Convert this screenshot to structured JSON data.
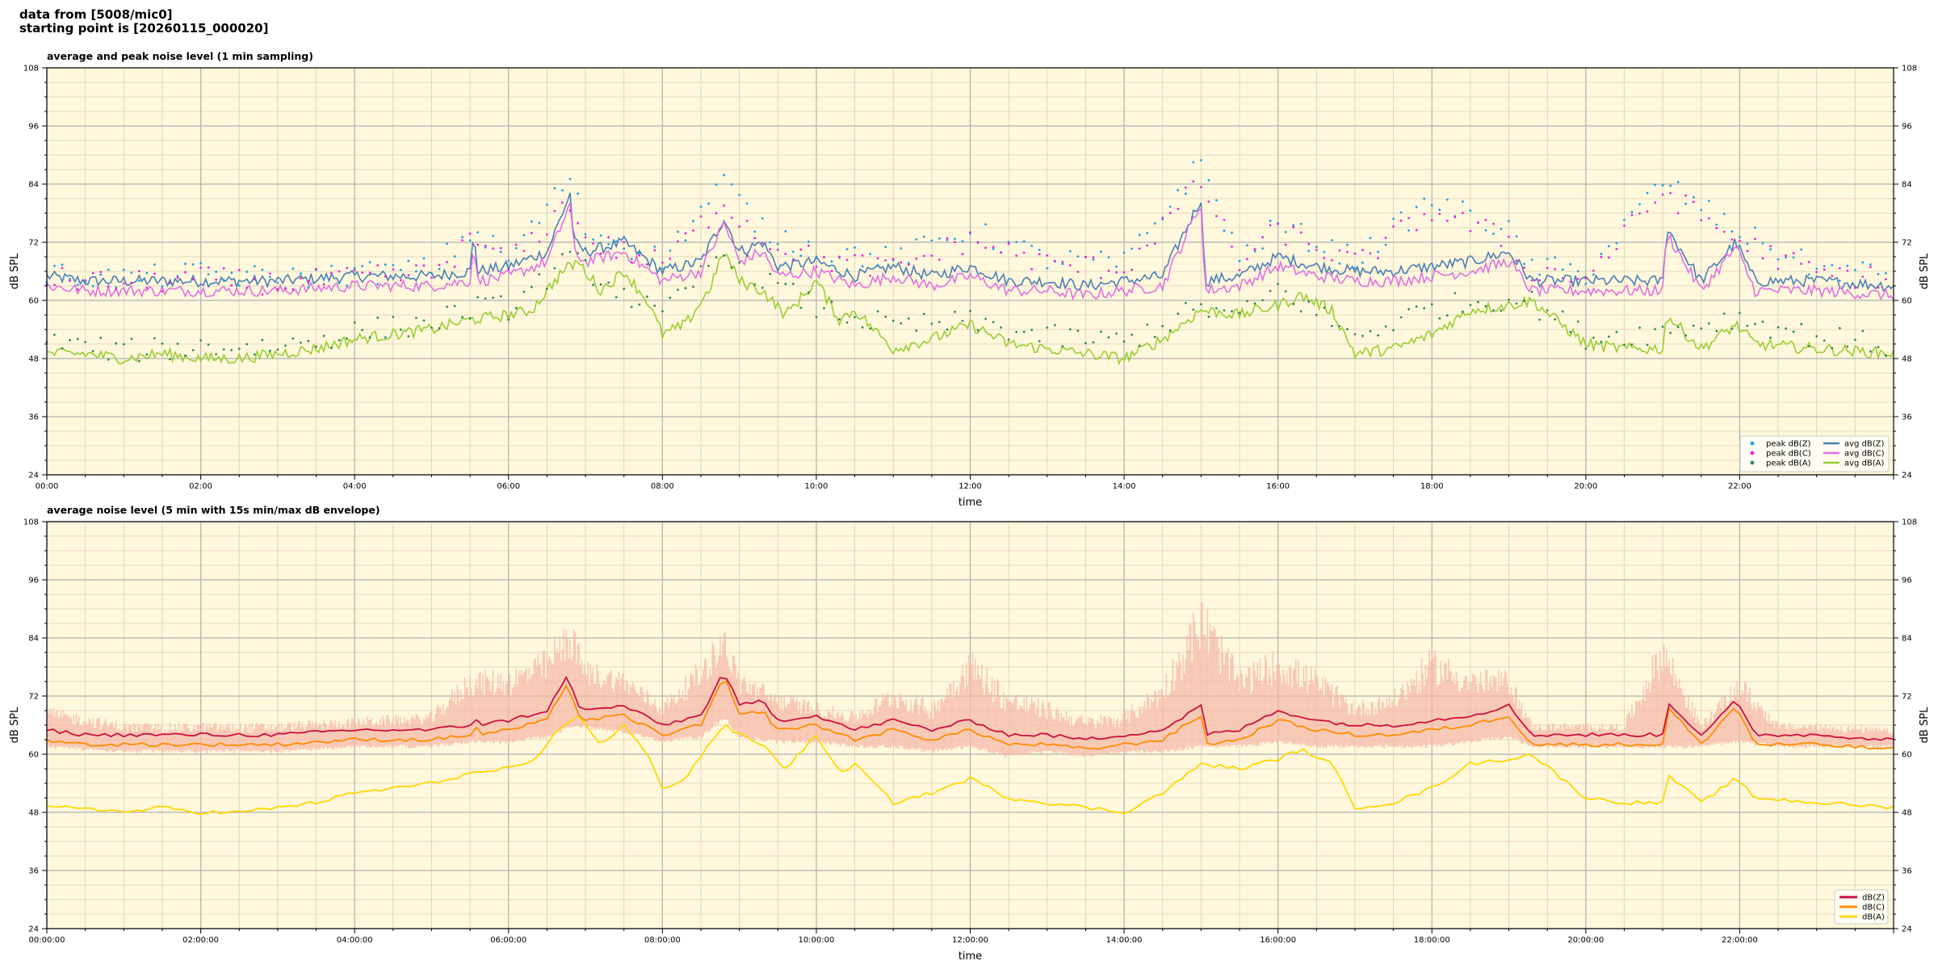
{
  "header": {
    "line1": "data from [5008/mic0]",
    "line2": "starting point is [20260115_000020]"
  },
  "colors": {
    "background": "#fff8dc",
    "peak_z": "#1f9fe0",
    "peak_c": "#ee22dd",
    "peak_a": "#2e8b57",
    "avg_z": "#4a7fb5",
    "avg_c": "#e070e0",
    "avg_a": "#9acd32",
    "z": "#cc1040",
    "c": "#ff8c00",
    "a": "#ffd700",
    "envelope": "#f5b8a8"
  },
  "chart_data": [
    {
      "type": "scatter",
      "title": "average and peak noise level (1 min sampling)",
      "xlabel": "time",
      "ylabel": "dB SPL",
      "ylabel_right": "dB SPL",
      "x_unit": "hours since 00:00",
      "xlim": [
        0,
        24
      ],
      "ylim": [
        24,
        108
      ],
      "yticks": [
        24,
        36,
        48,
        60,
        72,
        84,
        96,
        108
      ],
      "xticks": [
        0,
        2,
        4,
        6,
        8,
        10,
        12,
        14,
        16,
        18,
        20,
        22
      ],
      "xticklabels": [
        "00:00",
        "02:00",
        "04:00",
        "06:00",
        "08:00",
        "10:00",
        "12:00",
        "14:00",
        "16:00",
        "18:00",
        "20:00",
        "22:00"
      ],
      "grid": true,
      "legend_position": "lower right",
      "series": [
        {
          "name": "peak dB(Z)",
          "kind": "points",
          "x": [
            0,
            1,
            2,
            3,
            4,
            5,
            5.55,
            6,
            6.8,
            7,
            8,
            8.8,
            9.3,
            10,
            11,
            12,
            13,
            14,
            15,
            15.5,
            16,
            17,
            18,
            19,
            19.2,
            20,
            21,
            21.95,
            23,
            24
          ],
          "y": [
            65,
            64,
            65,
            64,
            65,
            66,
            74,
            68,
            85,
            74,
            68,
            84,
            74,
            70,
            68,
            74,
            68,
            67,
            88,
            68,
            75,
            68,
            80,
            74,
            67,
            65,
            84,
            74,
            66,
            65
          ]
        },
        {
          "name": "peak dB(C)",
          "kind": "points",
          "x": [
            0,
            1,
            2,
            3,
            4,
            5,
            5.55,
            6,
            6.8,
            7,
            8,
            8.8,
            9.3,
            10,
            11,
            12,
            13,
            14,
            15,
            15.5,
            16,
            17,
            18,
            19,
            19.2,
            20,
            21,
            21.95,
            23,
            24
          ],
          "y": [
            64,
            63,
            64,
            63,
            64,
            65,
            72,
            67,
            80,
            72,
            67,
            80,
            72,
            68,
            66,
            72,
            67,
            66,
            84,
            67,
            74,
            67,
            78,
            72,
            66,
            64,
            82,
            72,
            65,
            64
          ]
        },
        {
          "name": "peak dB(A)",
          "kind": "points",
          "x": [
            0,
            1,
            2,
            3,
            4,
            5,
            5.55,
            6,
            6.8,
            7,
            8,
            8.8,
            9.3,
            10,
            11,
            12,
            13,
            14,
            15,
            15.5,
            16,
            17,
            18,
            19,
            19.2,
            20,
            21,
            21.95,
            23,
            24
          ],
          "y": [
            51,
            49,
            50,
            50,
            53,
            55,
            58,
            58,
            68,
            66,
            56,
            70,
            64,
            58,
            54,
            55,
            52,
            51,
            58,
            56,
            62,
            52,
            58,
            60,
            60,
            52,
            53,
            56,
            52,
            50
          ]
        },
        {
          "name": "avg dB(Z)",
          "kind": "line",
          "x": [
            0,
            0.5,
            1,
            2,
            3,
            4,
            5,
            5.5,
            5.55,
            5.6,
            6,
            6.5,
            6.8,
            6.85,
            7,
            7.5,
            8,
            8.5,
            8.8,
            9,
            9.3,
            9.5,
            10,
            10.5,
            11,
            11.5,
            12,
            12.5,
            13,
            13.5,
            14,
            14.5,
            15,
            15.05,
            15.5,
            16,
            16.5,
            17,
            17.5,
            18,
            18.5,
            19,
            19.3,
            20,
            20.5,
            21,
            21.05,
            21.5,
            21.95,
            22.2,
            23,
            24
          ],
          "y": [
            65,
            64,
            64,
            64,
            64,
            65,
            65,
            66,
            74,
            66,
            67,
            70,
            82,
            72,
            70,
            72,
            66,
            68,
            77,
            70,
            72,
            67,
            68,
            65,
            67,
            65,
            67,
            64,
            64,
            63,
            64,
            65,
            81,
            64,
            65,
            69,
            67,
            66,
            66,
            67,
            68,
            70,
            64,
            64,
            64,
            64,
            75,
            64,
            72,
            64,
            64,
            63
          ]
        },
        {
          "name": "avg dB(C)",
          "kind": "line",
          "x": [
            0,
            0.5,
            1,
            2,
            3,
            4,
            5,
            5.5,
            5.55,
            5.6,
            6,
            6.5,
            6.8,
            6.85,
            7,
            7.5,
            8,
            8.5,
            8.8,
            9,
            9.3,
            9.5,
            10,
            10.5,
            11,
            11.5,
            12,
            12.5,
            13,
            13.5,
            14,
            14.5,
            15,
            15.05,
            15.5,
            16,
            16.5,
            17,
            17.5,
            18,
            18.5,
            19,
            19.3,
            20,
            20.5,
            21,
            21.05,
            21.5,
            21.95,
            22.2,
            23,
            24
          ],
          "y": [
            63,
            62,
            62,
            62,
            62,
            63,
            63,
            64,
            72,
            64,
            65,
            68,
            80,
            70,
            68,
            70,
            64,
            66,
            76,
            68,
            70,
            65,
            66,
            63,
            65,
            63,
            65,
            62,
            62,
            61,
            62,
            63,
            80,
            62,
            63,
            67,
            65,
            64,
            64,
            65,
            66,
            68,
            62,
            62,
            62,
            62,
            74,
            62,
            71,
            62,
            62,
            61
          ]
        },
        {
          "name": "avg dB(A)",
          "kind": "line",
          "x": [
            0,
            0.5,
            1,
            1.5,
            2,
            2.5,
            3,
            3.5,
            4,
            4.5,
            5,
            5.5,
            6,
            6.3,
            6.7,
            6.9,
            7.2,
            7.5,
            7.8,
            8,
            8.3,
            8.6,
            8.8,
            9,
            9.3,
            9.6,
            10,
            10.3,
            10.5,
            11,
            11.5,
            12,
            12.5,
            13,
            13.5,
            14,
            14.5,
            15,
            15.5,
            16,
            16.3,
            16.7,
            17,
            17.5,
            18,
            18.5,
            19,
            19.3,
            20,
            20.5,
            21,
            21.05,
            21.5,
            21.95,
            22.2,
            23,
            24
          ],
          "y": [
            49,
            49,
            48,
            49,
            48,
            48,
            49,
            50,
            52,
            53,
            54,
            56,
            57,
            58,
            66,
            68,
            62,
            66,
            60,
            53,
            55,
            62,
            70,
            64,
            62,
            57,
            64,
            56,
            58,
            50,
            52,
            55,
            51,
            50,
            49,
            48,
            52,
            58,
            57,
            59,
            61,
            58,
            49,
            50,
            53,
            58,
            59,
            60,
            51,
            50,
            50,
            57,
            50,
            55,
            51,
            50,
            49
          ]
        }
      ]
    },
    {
      "type": "line",
      "title": "average noise level (5 min with 15s min/max dB envelope)",
      "xlabel": "time",
      "ylabel": "dB SPL",
      "ylabel_right": "dB SPL",
      "x_unit": "hours since 00:00",
      "xlim": [
        0,
        24
      ],
      "ylim": [
        24,
        108
      ],
      "yticks": [
        24,
        36,
        48,
        60,
        72,
        84,
        96,
        108
      ],
      "xticks": [
        0,
        2,
        4,
        6,
        8,
        10,
        12,
        14,
        16,
        18,
        20,
        22
      ],
      "xticklabels": [
        "00:00:00",
        "02:00:00",
        "04:00:00",
        "06:00:00",
        "08:00:00",
        "10:00:00",
        "12:00:00",
        "14:00:00",
        "16:00:00",
        "18:00:00",
        "20:00:00",
        "22:00:00"
      ],
      "grid": true,
      "legend_position": "lower right",
      "envelope": {
        "x": [
          0,
          1,
          2,
          3,
          4,
          5,
          5.5,
          6,
          6.5,
          6.8,
          7,
          7.5,
          8,
          8.5,
          8.8,
          9,
          9.5,
          10,
          10.5,
          11,
          11.5,
          12,
          12.5,
          13,
          13.5,
          14,
          14.5,
          15,
          15.5,
          16,
          16.5,
          17,
          17.5,
          18,
          18.5,
          19,
          19.3,
          20,
          20.5,
          21,
          21.5,
          22,
          22.5,
          23,
          24
        ],
        "low": [
          62,
          61,
          61,
          61,
          62,
          62,
          63,
          63,
          64,
          66,
          66,
          65,
          63,
          64,
          68,
          64,
          63,
          63,
          62,
          62,
          61,
          62,
          60,
          61,
          60,
          61,
          61,
          62,
          62,
          63,
          62,
          62,
          62,
          62,
          63,
          64,
          62,
          62,
          62,
          62,
          62,
          63,
          62,
          62,
          62
        ],
        "high": [
          69,
          66,
          66,
          66,
          67,
          68,
          76,
          76,
          80,
          86,
          78,
          76,
          70,
          78,
          85,
          76,
          72,
          70,
          68,
          73,
          70,
          80,
          72,
          70,
          67,
          68,
          74,
          90,
          76,
          80,
          76,
          70,
          72,
          80,
          76,
          76,
          66,
          66,
          66,
          83,
          66,
          75,
          66,
          66,
          65
        ]
      },
      "series": [
        {
          "name": "dB(Z)",
          "x": [
            0,
            0.5,
            1,
            2,
            3,
            4,
            5,
            5.5,
            5.55,
            5.6,
            6,
            6.5,
            6.8,
            6.85,
            7,
            7.5,
            8,
            8.5,
            8.8,
            9,
            9.3,
            9.5,
            10,
            10.5,
            11,
            11.5,
            12,
            12.5,
            13,
            13.5,
            14,
            14.5,
            15,
            15.05,
            15.5,
            16,
            16.5,
            17,
            17.5,
            18,
            18.5,
            19,
            19.3,
            20,
            20.5,
            21,
            21.05,
            21.5,
            21.95,
            22.2,
            23,
            24
          ],
          "values": [
            65,
            64,
            64,
            64,
            64,
            65,
            65,
            66,
            70,
            66,
            67,
            69,
            77,
            71,
            69,
            70,
            66,
            68,
            77,
            70,
            71,
            67,
            68,
            65,
            67,
            65,
            67,
            64,
            64,
            63,
            64,
            65,
            70,
            64,
            65,
            69,
            67,
            66,
            66,
            67,
            68,
            70,
            64,
            64,
            64,
            64,
            71,
            64,
            71,
            64,
            64,
            63
          ]
        },
        {
          "name": "dB(C)",
          "x": [
            0,
            0.5,
            1,
            2,
            3,
            4,
            5,
            5.5,
            5.55,
            5.6,
            6,
            6.5,
            6.8,
            6.85,
            7,
            7.5,
            8,
            8.5,
            8.8,
            9,
            9.3,
            9.5,
            10,
            10.5,
            11,
            11.5,
            12,
            12.5,
            13,
            13.5,
            14,
            14.5,
            15,
            15.05,
            15.5,
            16,
            16.5,
            17,
            17.5,
            18,
            18.5,
            19,
            19.3,
            20,
            20.5,
            21,
            21.05,
            21.5,
            21.95,
            22.2,
            23,
            24
          ],
          "values": [
            63,
            62,
            62,
            62,
            62,
            63,
            63,
            64,
            68,
            64,
            65,
            67,
            76,
            69,
            67,
            68,
            64,
            66,
            76,
            68,
            69,
            65,
            66,
            63,
            65,
            63,
            65,
            62,
            62,
            61,
            62,
            63,
            68,
            62,
            63,
            67,
            65,
            64,
            64,
            65,
            66,
            68,
            62,
            62,
            62,
            62,
            70,
            62,
            70,
            62,
            62,
            61
          ]
        },
        {
          "name": "dB(A)",
          "x": [
            0,
            0.5,
            1,
            1.5,
            2,
            2.5,
            3,
            3.5,
            4,
            4.5,
            5,
            5.5,
            6,
            6.3,
            6.7,
            6.9,
            7.2,
            7.5,
            7.8,
            8,
            8.3,
            8.6,
            8.8,
            9,
            9.3,
            9.6,
            10,
            10.3,
            10.5,
            11,
            11.5,
            12,
            12.5,
            13,
            13.5,
            14,
            14.5,
            15,
            15.5,
            16,
            16.3,
            16.7,
            17,
            17.5,
            18,
            18.5,
            19,
            19.3,
            20,
            20.5,
            21,
            21.05,
            21.5,
            21.95,
            22.2,
            23,
            24
          ],
          "values": [
            49,
            49,
            48,
            49,
            48,
            48,
            49,
            50,
            52,
            53,
            54,
            56,
            57,
            58,
            66,
            68,
            62,
            66,
            60,
            53,
            55,
            62,
            66,
            64,
            62,
            57,
            64,
            56,
            58,
            50,
            52,
            55,
            51,
            50,
            49,
            48,
            52,
            58,
            57,
            59,
            61,
            58,
            49,
            50,
            53,
            58,
            59,
            60,
            51,
            50,
            50,
            56,
            50,
            55,
            51,
            50,
            49
          ]
        }
      ]
    }
  ]
}
